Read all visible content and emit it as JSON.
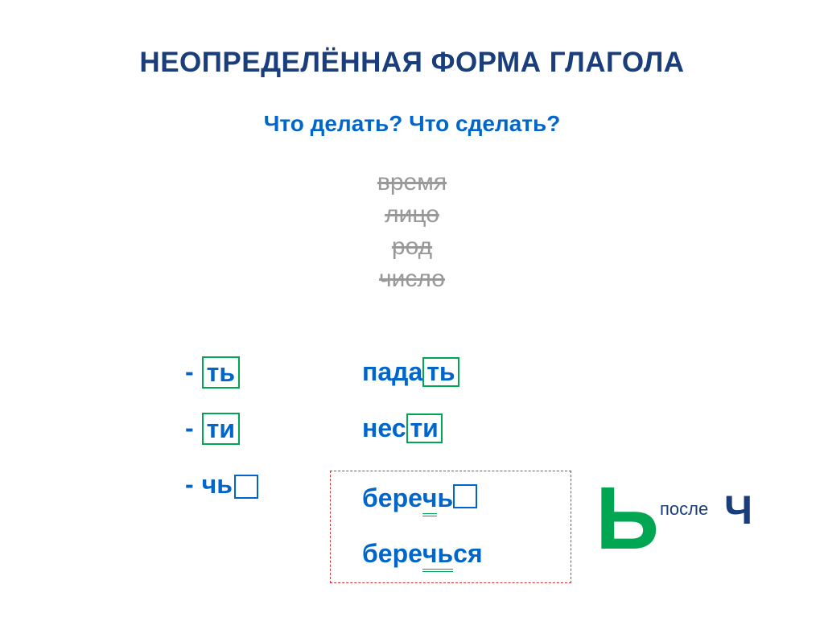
{
  "title": "НЕОПРЕДЕЛЁННАЯ ФОРМА ГЛАГОЛА",
  "subtitle": "Что делать? Что сделать?",
  "crossed": {
    "item1": "время",
    "item2": "лицо",
    "item3": "род",
    "item4": "число"
  },
  "suffixes": {
    "dash": "-",
    "s1": "ть",
    "s2": "ти",
    "s3": "чь"
  },
  "examples": {
    "e1_stem": "пада",
    "e1_suf": "ть",
    "e2_stem": "нес",
    "e2_suf": "ти",
    "e3_stem": "бере",
    "e3_mid": "ч",
    "e3_end": "ь",
    "e4_stem": "бере",
    "e4_mid": "чь",
    "e4_end": "ся"
  },
  "note": {
    "big_soft": "Ь",
    "after": "после",
    "big_ch": "Ч"
  },
  "colors": {
    "title": "#1a3d7c",
    "blue": "#0066cc",
    "green": "#00a651",
    "gray": "#999999",
    "red": "#cc3333"
  }
}
